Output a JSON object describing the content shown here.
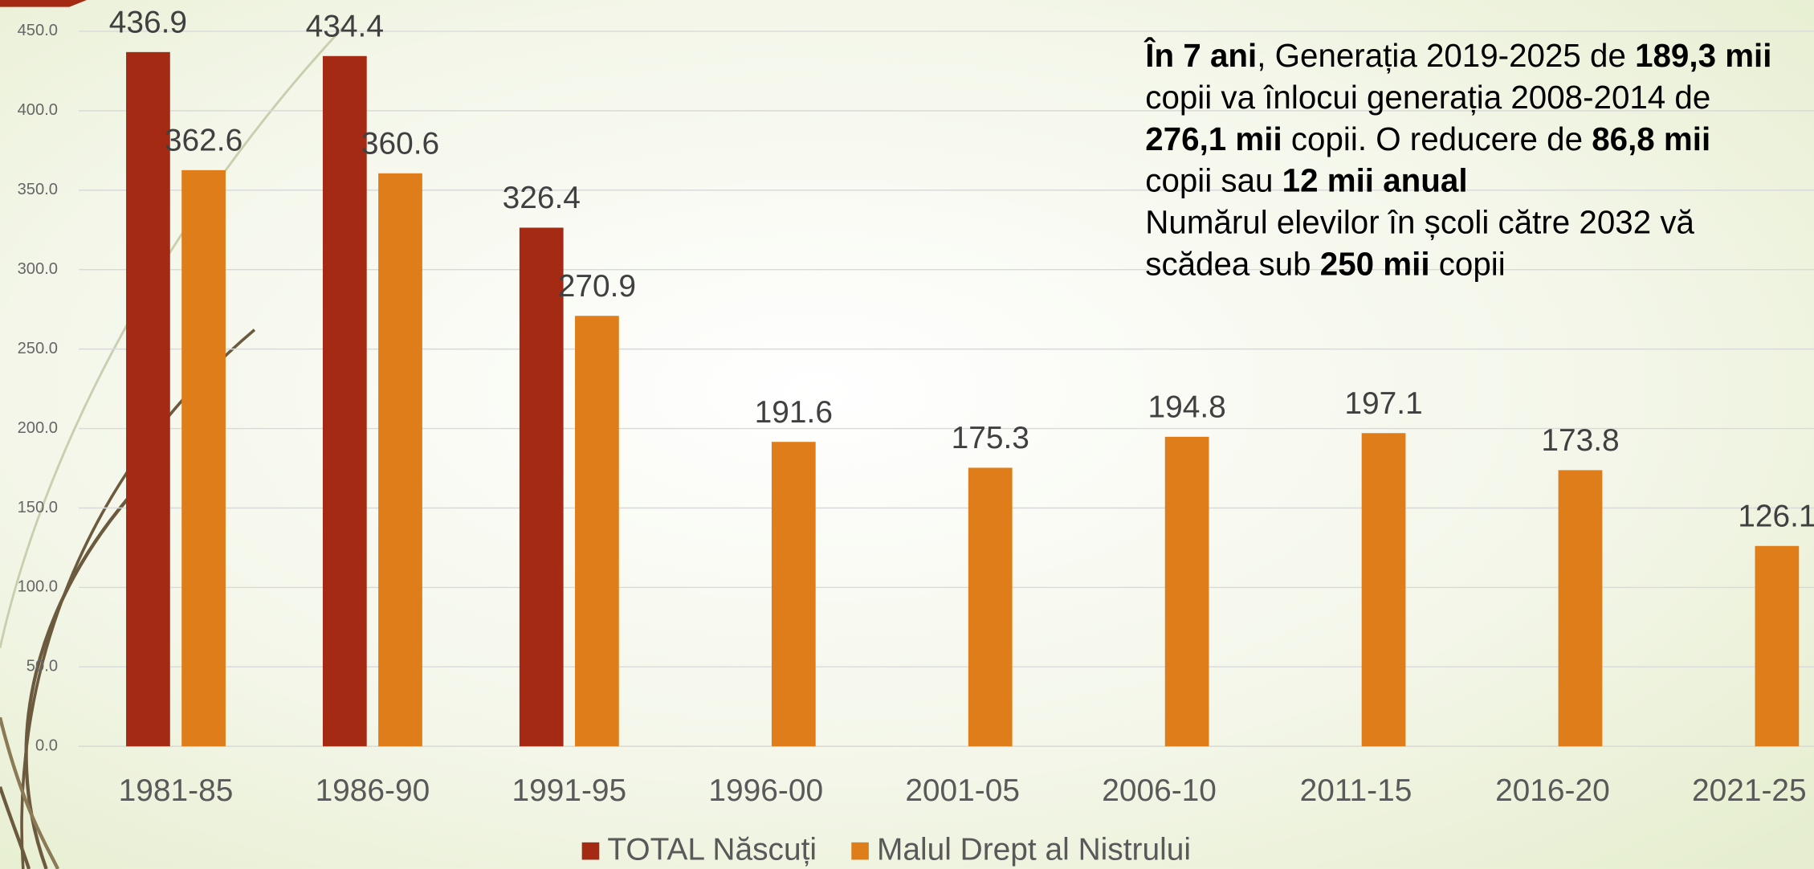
{
  "chart_data": {
    "type": "bar",
    "categories": [
      "1981-85",
      "1986-90",
      "1991-95",
      "1996-00",
      "2001-05",
      "2006-10",
      "2011-15",
      "2016-20",
      "2021-25"
    ],
    "series": [
      {
        "name": "TOTAL Născuți",
        "color": "#a52a13",
        "values": [
          436.9,
          434.4,
          326.4,
          null,
          null,
          null,
          null,
          null,
          null
        ]
      },
      {
        "name": "Malul Drept al Nistrului",
        "color": "#e07d1b",
        "values": [
          362.6,
          360.6,
          270.9,
          191.6,
          175.3,
          194.8,
          197.1,
          173.8,
          126.1
        ]
      }
    ],
    "ylim": [
      0,
      450
    ],
    "yticks": [
      {
        "value": 0,
        "label": "0.0"
      },
      {
        "value": 50,
        "label": "50.0"
      },
      {
        "value": 100,
        "label": "100.0"
      },
      {
        "value": 150,
        "label": "150.0"
      },
      {
        "value": 200,
        "label": "200.0"
      },
      {
        "value": 250,
        "label": "250.0"
      },
      {
        "value": 300,
        "label": "300.0"
      },
      {
        "value": 350,
        "label": "350.0"
      },
      {
        "value": 400,
        "label": "400.0"
      },
      {
        "value": 450,
        "label": "450.0"
      }
    ],
    "grid": true,
    "legend": "bottom",
    "annotation": [
      [
        {
          "text": "În 7 ani",
          "bold": true
        },
        {
          "text": ", Generația 2019-2025 de ",
          "bold": false
        },
        {
          "text": "189,3 mii",
          "bold": true
        }
      ],
      [
        {
          "text": "copii va înlocui generația 2008-2014 de",
          "bold": false
        }
      ],
      [
        {
          "text": "276,1 mii",
          "bold": true
        },
        {
          "text": " copii. O reducere de ",
          "bold": false
        },
        {
          "text": "86,8 mii",
          "bold": true
        }
      ],
      [
        {
          "text": "copii sau ",
          "bold": false
        },
        {
          "text": "12 mii anual",
          "bold": true
        }
      ],
      [
        {
          "text": "Numărul elevilor în școli către 2032 vă",
          "bold": false
        }
      ],
      [
        {
          "text": "scădea sub ",
          "bold": false
        },
        {
          "text": "250 mii",
          "bold": true
        },
        {
          "text": " copii",
          "bold": false
        }
      ]
    ]
  }
}
